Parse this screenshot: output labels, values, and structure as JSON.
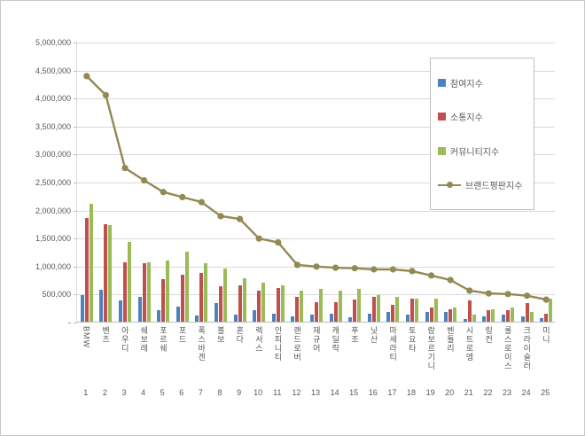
{
  "chart_data": {
    "type": "bar",
    "subtype": "grouped-bar-with-line-combo",
    "title": "",
    "categories": [
      "BMW",
      "벤츠",
      "아우디",
      "쉐보레",
      "포르쉐",
      "포드",
      "폭스바겐",
      "볼보",
      "혼다",
      "렉서스",
      "인피니티",
      "랜드로버",
      "재규어",
      "캐딜락",
      "푸조",
      "닛산",
      "마세라티",
      "토요타",
      "람보르기니",
      "벤틀리",
      "시트로엥",
      "링컨",
      "롤스로이스",
      "크라이슬러",
      "미니"
    ],
    "ranks": [
      "1",
      "2",
      "3",
      "4",
      "5",
      "6",
      "7",
      "8",
      "9",
      "10",
      "11",
      "12",
      "13",
      "14",
      "15",
      "16",
      "17",
      "18",
      "19",
      "20",
      "21",
      "22",
      "23",
      "24",
      "25"
    ],
    "series": [
      {
        "name": "참여지수",
        "key": "participation-index",
        "type": "bar",
        "color": "#4F81BD",
        "values": [
          470000,
          570000,
          380000,
          450000,
          200000,
          270000,
          110000,
          330000,
          120000,
          200000,
          150000,
          100000,
          130000,
          150000,
          80000,
          150000,
          180000,
          130000,
          180000,
          180000,
          50000,
          100000,
          130000,
          100000,
          70000
        ]
      },
      {
        "name": "소통지수",
        "key": "communication-index",
        "type": "bar",
        "color": "#C0504D",
        "values": [
          1850000,
          1740000,
          1060000,
          1050000,
          760000,
          840000,
          870000,
          630000,
          650000,
          550000,
          600000,
          450000,
          350000,
          350000,
          400000,
          450000,
          300000,
          420000,
          250000,
          230000,
          380000,
          200000,
          200000,
          330000,
          150000
        ]
      },
      {
        "name": "커뮤니티지수",
        "key": "community-index",
        "type": "bar",
        "color": "#9BBB59",
        "values": [
          2100000,
          1730000,
          1420000,
          1060000,
          1100000,
          1250000,
          1050000,
          950000,
          780000,
          700000,
          650000,
          550000,
          580000,
          550000,
          580000,
          480000,
          450000,
          420000,
          420000,
          250000,
          120000,
          220000,
          250000,
          180000,
          420000
        ]
      },
      {
        "name": "브랜드평판지수",
        "key": "brand-reputation-index",
        "type": "line",
        "color": "#938953",
        "values": [
          4400000,
          4060000,
          2760000,
          2540000,
          2330000,
          2240000,
          2150000,
          1900000,
          1850000,
          1500000,
          1430000,
          1030000,
          1000000,
          980000,
          970000,
          950000,
          950000,
          920000,
          840000,
          760000,
          570000,
          520000,
          510000,
          480000,
          410000
        ]
      }
    ],
    "ylim": [
      0,
      5000000
    ],
    "yticks": [
      {
        "value": 5000000,
        "label": "5,000,000"
      },
      {
        "value": 4500000,
        "label": "4,500,000"
      },
      {
        "value": 4000000,
        "label": "4,000,000"
      },
      {
        "value": 3500000,
        "label": "3,500,000"
      },
      {
        "value": 3000000,
        "label": "3,000,000"
      },
      {
        "value": 2500000,
        "label": "2,500,000"
      },
      {
        "value": 2000000,
        "label": "2,000,000"
      },
      {
        "value": 1500000,
        "label": "1,500,000"
      },
      {
        "value": 1000000,
        "label": "1,000,000"
      },
      {
        "value": 500000,
        "label": "500,000"
      },
      {
        "value": 0,
        "label": "-"
      }
    ],
    "grid": true,
    "legend_position": "upper right",
    "colors": {
      "gridline": "#d9d9d9",
      "axis": "#bfbfbf",
      "tick_text": "#595959",
      "background": "#ffffff"
    }
  }
}
